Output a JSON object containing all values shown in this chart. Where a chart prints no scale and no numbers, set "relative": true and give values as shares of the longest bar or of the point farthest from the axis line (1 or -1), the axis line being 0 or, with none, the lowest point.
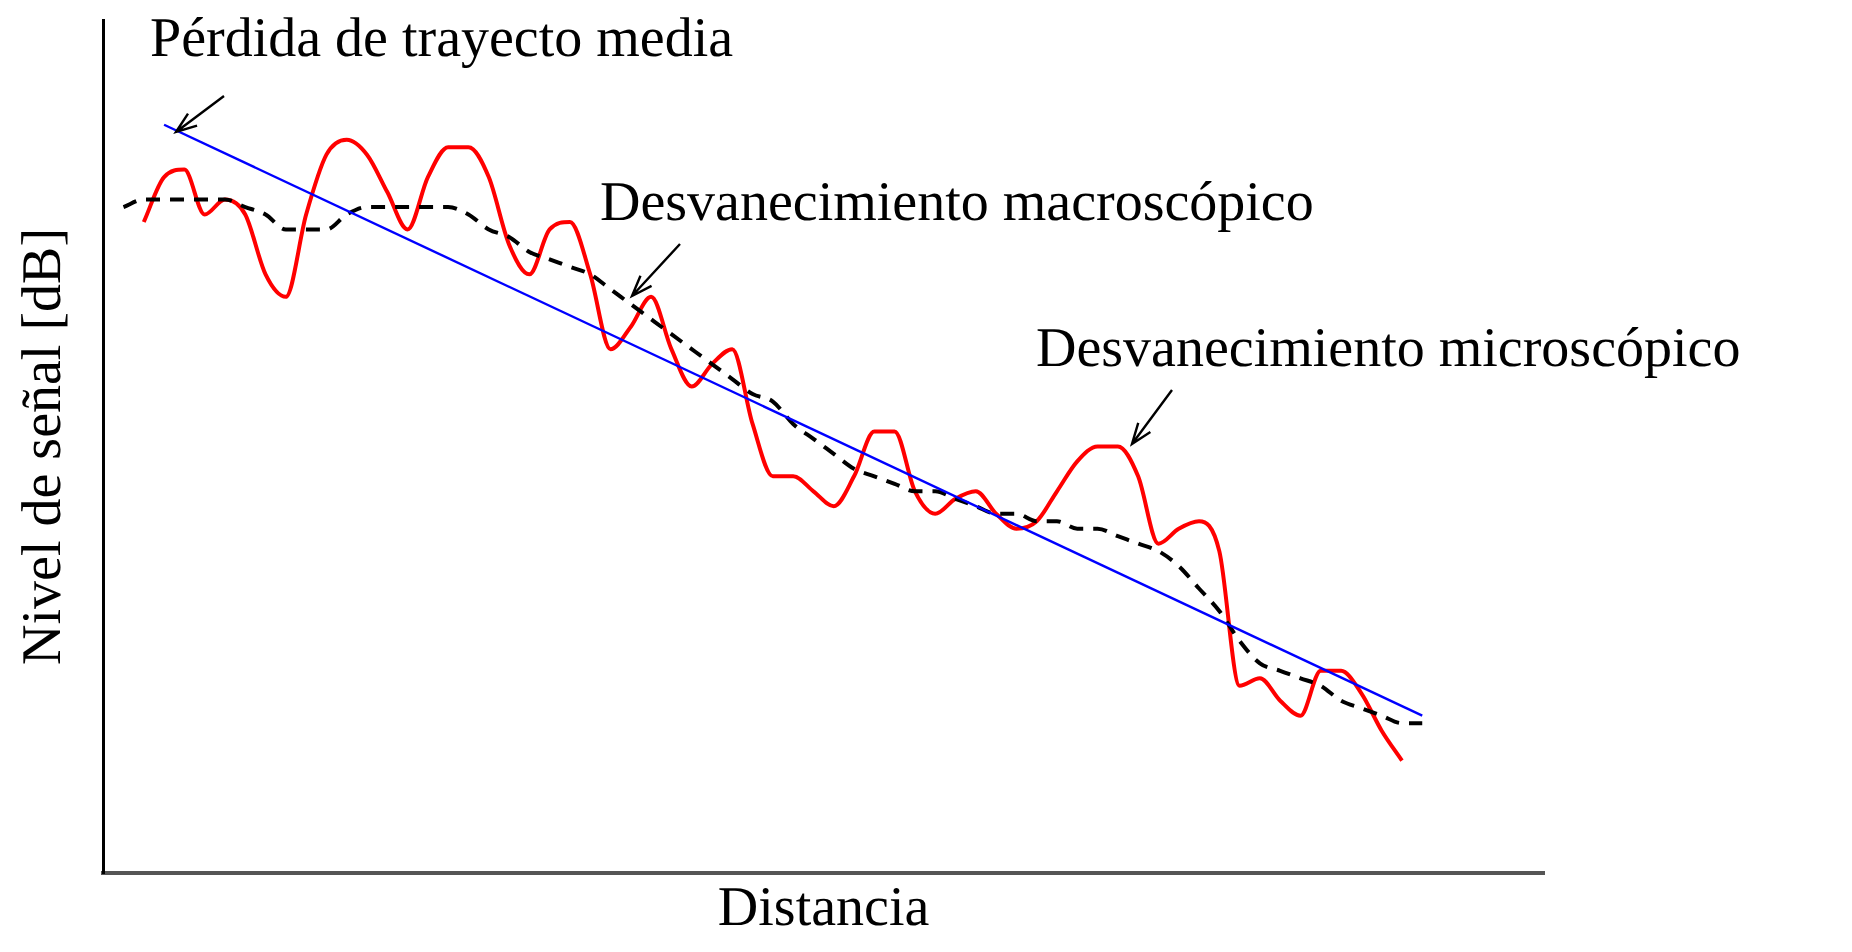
{
  "chart_data": {
    "type": "line",
    "relative": true,
    "xlabel": "Distancia",
    "ylabel": "Nivel de señal [dB]",
    "legend": false,
    "grid": false,
    "marker": "none",
    "categories": [
      null,
      null,
      null,
      null,
      null,
      null,
      null,
      null,
      null,
      null,
      null,
      null,
      null,
      null,
      null,
      null,
      null,
      null,
      null,
      null,
      null,
      null,
      null,
      null,
      null,
      null,
      null,
      null,
      null,
      null,
      null,
      null,
      null,
      null,
      null,
      null,
      null,
      null,
      null,
      null,
      null,
      null,
      null,
      null,
      null,
      null,
      null,
      null,
      null,
      null,
      null,
      null,
      null,
      null,
      null,
      null,
      null,
      null,
      null,
      null,
      null,
      null,
      null,
      null,
      null,
      null,
      null,
      null,
      null,
      null,
      null,
      null
    ],
    "series": [
      {
        "color": "#0000ff",
        "line_style": "solid",
        "values": [
          null,
          null,
          null,
          1,
          null,
          null,
          null,
          null,
          null,
          null,
          null,
          null,
          null,
          null,
          null,
          null,
          null,
          null,
          null,
          null,
          null,
          null,
          null,
          null,
          null,
          null,
          null,
          null,
          null,
          null,
          null,
          null,
          null,
          null,
          null,
          null,
          null,
          null,
          null,
          null,
          null,
          null,
          null,
          null,
          null,
          null,
          null,
          null,
          null,
          null,
          null,
          null,
          null,
          null,
          null,
          null,
          null,
          null,
          null,
          null,
          null,
          null,
          null,
          null,
          null,
          0.21,
          null,
          null,
          null,
          null,
          null,
          null
        ]
      },
      {
        "color": "#000000",
        "line_style": "dashed",
        "values": [
          null,
          0.89,
          0.9,
          0.9,
          0.9,
          0.9,
          0.9,
          0.89,
          0.88,
          0.86,
          0.86,
          0.86,
          0.88,
          0.89,
          0.89,
          0.89,
          0.89,
          0.89,
          0.88,
          0.86,
          0.85,
          0.83,
          0.82,
          0.81,
          0.8,
          0.78,
          0.76,
          0.74,
          0.72,
          0.7,
          0.68,
          0.66,
          0.64,
          0.63,
          0.6,
          0.58,
          0.56,
          0.54,
          0.53,
          0.52,
          0.51,
          0.51,
          0.5,
          0.49,
          0.48,
          0.48,
          0.47,
          0.47,
          0.46,
          0.46,
          0.45,
          0.44,
          0.43,
          0.41,
          0.38,
          0.35,
          0.31,
          0.28,
          0.27,
          0.26,
          0.25,
          0.23,
          0.22,
          0.21,
          0.2,
          0.2,
          null,
          null,
          null,
          null,
          null,
          null
        ]
      },
      {
        "color": "#ff0000",
        "line_style": "solid",
        "values": [
          null,
          null,
          0.87,
          0.93,
          0.94,
          0.88,
          0.9,
          0.88,
          0.8,
          0.77,
          0.88,
          0.96,
          0.98,
          0.96,
          0.91,
          0.86,
          0.93,
          0.97,
          0.97,
          0.93,
          0.84,
          0.8,
          0.86,
          0.87,
          0.8,
          0.7,
          0.73,
          0.77,
          0.7,
          0.65,
          0.68,
          0.7,
          0.6,
          0.53,
          0.53,
          0.51,
          0.49,
          0.53,
          0.59,
          0.59,
          0.51,
          0.48,
          0.5,
          0.51,
          0.48,
          0.46,
          0.47,
          0.51,
          0.55,
          0.57,
          0.57,
          0.53,
          0.44,
          0.46,
          0.47,
          0.43,
          0.25,
          0.26,
          0.23,
          0.21,
          0.27,
          0.27,
          0.24,
          0.19,
          0.15,
          null,
          null,
          null,
          null,
          null,
          null,
          null
        ]
      }
    ],
    "annotations": [
      "Pérdida de trayecto media",
      "Desvanecimiento macroscópico",
      "Desvanecimiento microscópico"
    ]
  }
}
